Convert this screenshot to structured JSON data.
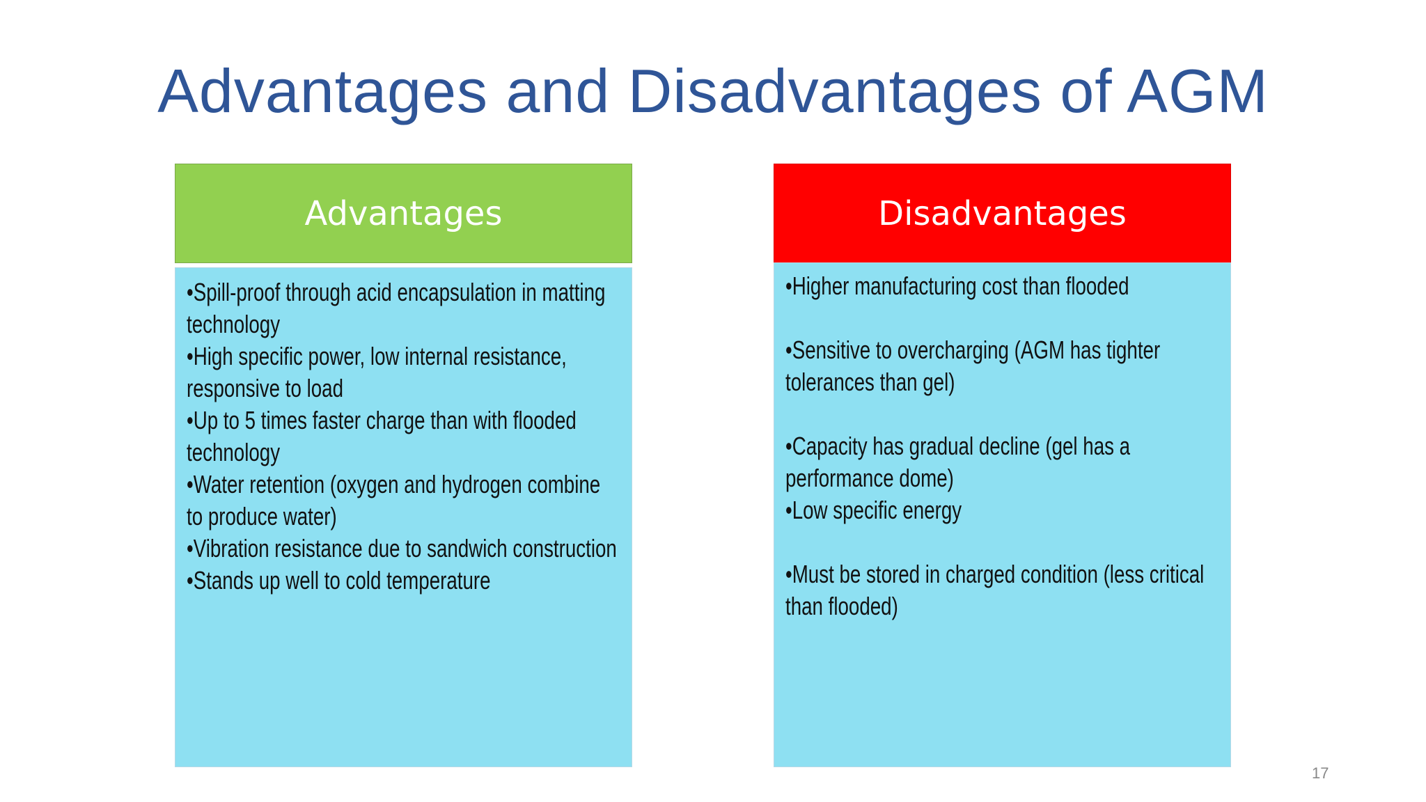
{
  "title": "Advantages and Disadvantages of AGM",
  "advantages": {
    "heading": "Advantages",
    "items": [
      "•Spill-proof through acid encapsulation in matting technology",
      "•High specific power, low internal resistance, responsive to load",
      "•Up to 5 times faster charge than with flooded technology",
      "•Water retention (oxygen and hydrogen combine to produce water)",
      "•Vibration resistance due to sandwich construction",
      "•Stands up well to cold temperature"
    ]
  },
  "disadvantages": {
    "heading": "Disadvantages",
    "items": [
      "•Higher manufacturing cost than flooded",
      "•Sensitive to overcharging (AGM has tighter tolerances than gel)",
      "•Capacity has gradual decline (gel has a performance dome)",
      "•Low specific energy",
      "•Must be stored in charged condition (less critical than flooded)"
    ]
  },
  "page_number": "17"
}
